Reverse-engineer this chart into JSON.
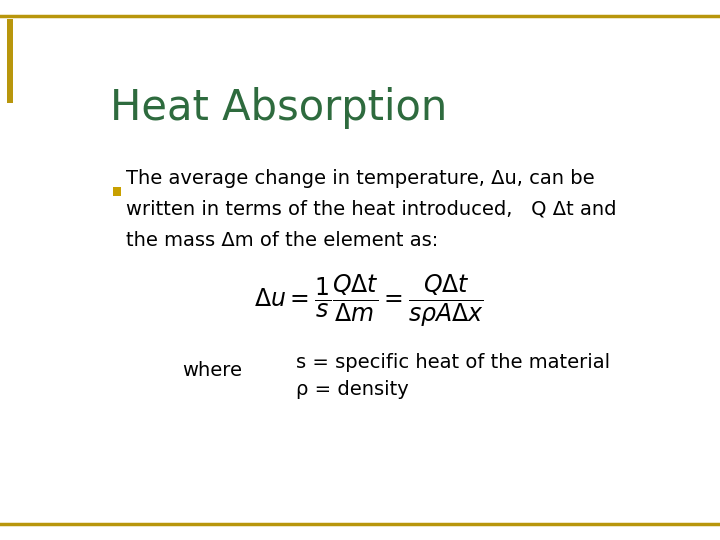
{
  "title": "Heat Absorption",
  "title_color": "#2E6B3E",
  "title_fontsize": 30,
  "background_color": "#FFFFFF",
  "border_color": "#B8960C",
  "left_bar_color": "#B8960C",
  "bullet_color": "#C8A000",
  "text_color": "#000000",
  "text_fontsize": 14,
  "where_label": "where",
  "where_s": "s = specific heat of the material",
  "where_rho": "ρ = density"
}
